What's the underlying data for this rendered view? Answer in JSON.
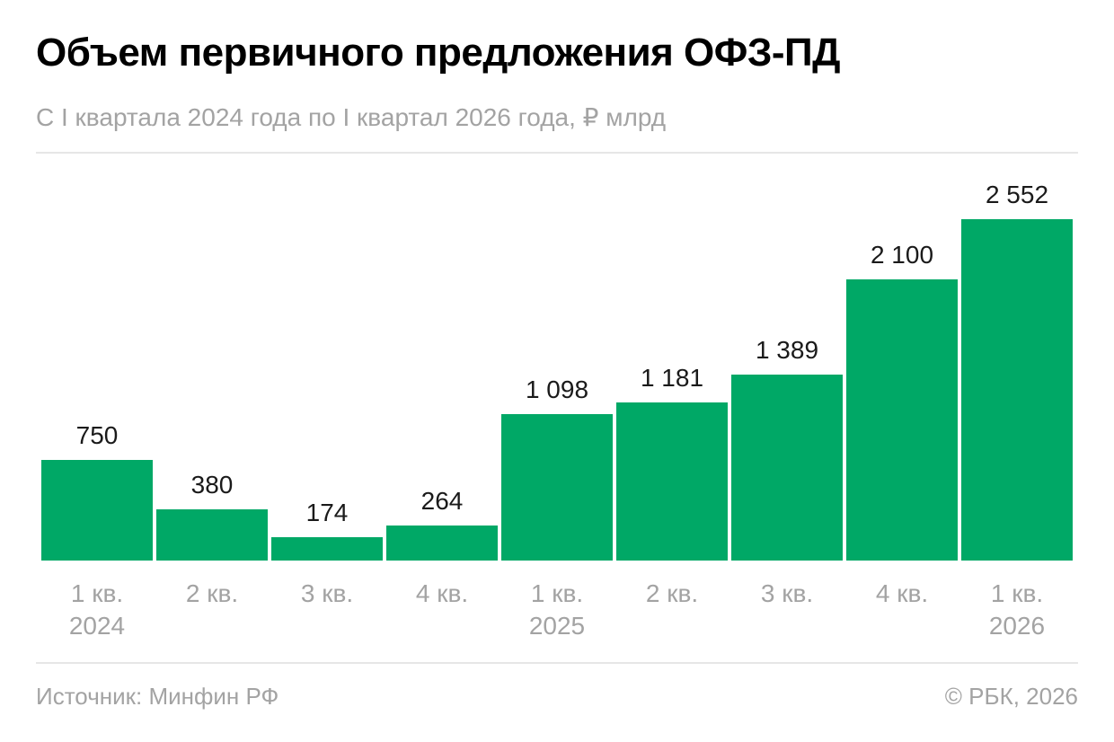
{
  "header": {
    "title": "Объем первичного предложения ОФЗ-ПД",
    "subtitle": "С I квартала 2024 года по I квартал 2026 года, ₽ млрд"
  },
  "footer": {
    "source": "Источник: Минфин РФ",
    "copyright": "© РБК, 2026"
  },
  "colors": {
    "bar": "#00a866",
    "value_label": "#1a1a1a",
    "category_label": "#a3a3a3"
  },
  "chart_data": {
    "type": "bar",
    "title": "Объем первичного предложения ОФЗ-ПД",
    "subtitle": "С I квартала 2024 года по I квартал 2026 года, ₽ млрд",
    "categories": [
      [
        "1 кв.",
        "2024"
      ],
      [
        "2 кв."
      ],
      [
        "3 кв."
      ],
      [
        "4 кв."
      ],
      [
        "1 кв.",
        "2025"
      ],
      [
        "2 кв."
      ],
      [
        "3 кв."
      ],
      [
        "4 кв."
      ],
      [
        "1 кв.",
        "2026"
      ]
    ],
    "values": [
      750,
      380,
      174,
      264,
      1098,
      1181,
      1389,
      2100,
      2552
    ],
    "value_labels": [
      "750",
      "380",
      "174",
      "264",
      "1 098",
      "1 181",
      "1 389",
      "2 100",
      "2 552"
    ],
    "xlabel": "",
    "ylabel": "",
    "ylim": [
      0,
      2552
    ],
    "grid": false,
    "legend": "none",
    "data_labels": "above-bars"
  }
}
